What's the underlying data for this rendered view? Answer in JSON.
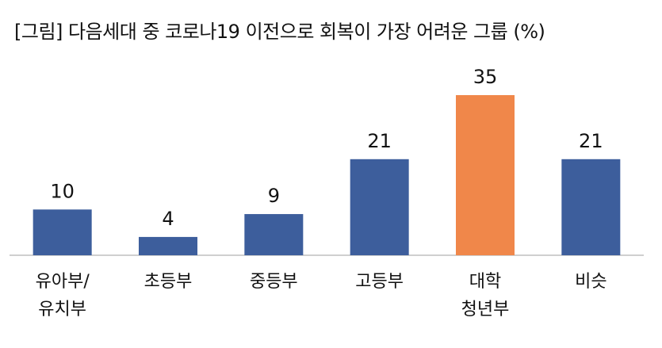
{
  "title": "[그림] 다음세대 중 코로나19 이전으로 회복이 가장 어려운 그룹 (%)",
  "colors": {
    "default_bar": "#3d5e9c",
    "highlight_bar": "#f0874a",
    "axis": "#bfbfbf"
  },
  "chart_data": {
    "type": "bar",
    "title": "[그림] 다음세대 중 코로나19 이전으로 회복이 가장 어려운 그룹 (%)",
    "categories": [
      [
        "유아부/",
        "유치부"
      ],
      [
        "초등부"
      ],
      [
        "중등부"
      ],
      [
        "고등부"
      ],
      [
        "대학",
        "청년부"
      ],
      [
        "비슷"
      ]
    ],
    "values": [
      10,
      4,
      9,
      21,
      35,
      21
    ],
    "highlight_index": 4,
    "ylim": [
      0,
      35
    ],
    "grid": false,
    "legend": "none",
    "data_labels": true
  }
}
